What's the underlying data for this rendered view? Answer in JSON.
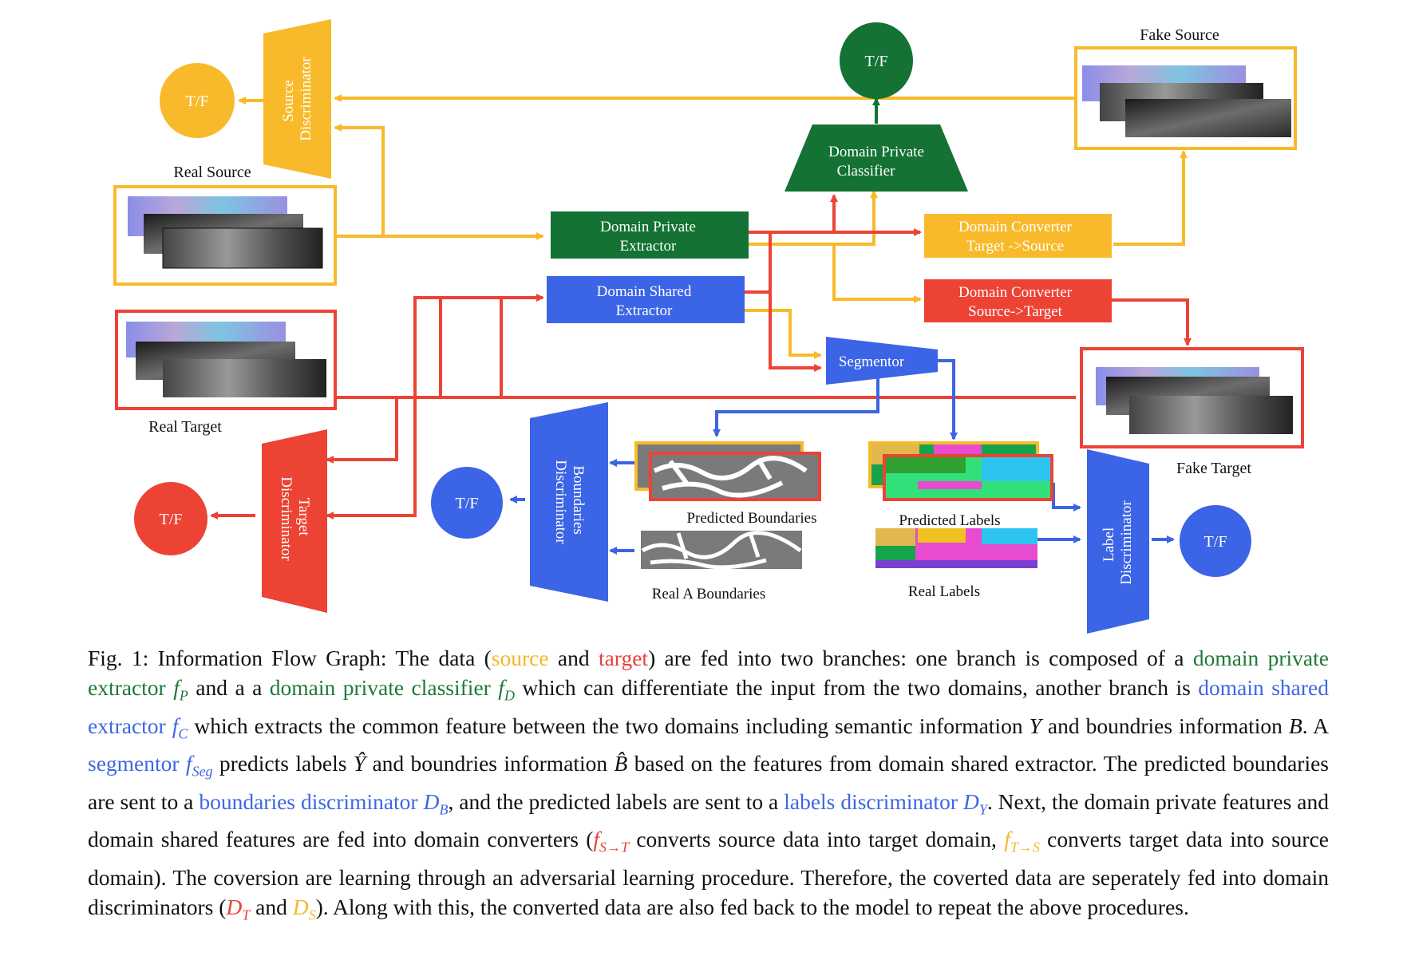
{
  "colors": {
    "yellow": "#f8ba2a",
    "red": "#ec4335",
    "green": "#137234",
    "blue": "#3b64e6"
  },
  "diagram": {
    "tf_source": "T/F",
    "source_discriminator": [
      "Source",
      "Discriminator"
    ],
    "real_source": "Real Source",
    "real_target": "Real Target",
    "tf_target": "T/F",
    "target_discriminator": [
      "Target",
      "Discriminator"
    ],
    "tf_private": "T/F",
    "domain_private_classifier": [
      "Domain Private",
      "Classifier"
    ],
    "fake_source": "Fake Source",
    "domain_private_extractor": [
      "Domain Private",
      "Extractor"
    ],
    "domain_shared_extractor": [
      "Domain Shared",
      "Extractor"
    ],
    "converter_ts": [
      "Domain Converter",
      "Target ->Source"
    ],
    "converter_st": [
      "Domain Converter",
      "Source->Target"
    ],
    "segmentor": "Segmentor",
    "fake_target": "Fake Target",
    "tf_boundaries": "T/F",
    "boundaries_discriminator": [
      "Boundaries",
      "Discriminator"
    ],
    "predicted_boundaries": "Predicted Boundaries",
    "real_a_boundaries": "Real A Boundaries",
    "predicted_labels": "Predicted Labels",
    "real_labels": "Real Labels",
    "label_discriminator": [
      "Label",
      "Discriminator"
    ],
    "tf_label": "T/F"
  },
  "caption": {
    "s01": "Fig. 1: Information Flow Graph: The data (",
    "source": "source",
    "s02": " and ",
    "target": "target",
    "s03": ") are fed into two branches: one branch is composed of a ",
    "dpe": "domain private extractor",
    "fP": "f",
    "fP_sub": "P",
    "s04": " and a a ",
    "dpc": "domain private classifier",
    "fD": "f",
    "fD_sub": "D",
    "s05": " which can differentiate the input from the two domains, another branch is ",
    "dse": "domain shared extractor",
    "fC": "f",
    "fC_sub": "C",
    "s06": " which extracts the common feature between the two domains including semantic information ",
    "Y": "Y",
    "s07": " and boundries information ",
    "B": "B",
    "s08": ". A ",
    "seg": "segmentor",
    "fSeg": "f",
    "fSeg_sub": "Seg",
    "s09": " predicts labels ",
    "Yhat": "Ŷ",
    "s10": " and boundries information ",
    "Bhat": "B̂",
    "s11": " based on the features from domain shared extractor. The predicted boundaries are sent to a ",
    "bd": "boundaries discriminator",
    "DB": "D",
    "DB_sub": "B",
    "s12": ", and the predicted labels are sent to a ",
    "ld": "labels discriminator",
    "DY": "D",
    "DY_sub": "Y",
    "s13": ". Next, the domain private features and domain shared features are fed into domain converters (",
    "fST": "f",
    "fST_sub": "S→T",
    "s14": " converts source data into target domain, ",
    "fTS": "f",
    "fTS_sub": "T→S",
    "s15": " converts target data into source domain). The coversion are learning through an adversarial learning procedure. Therefore, the coverted data are seperately fed into domain discriminators (",
    "DT": "D",
    "DT_sub": "T",
    "s16": " and ",
    "DS": "D",
    "DS_sub": "S",
    "s17": "). Along with this, the converted data are also fed back to the model to repeat the above procedures."
  }
}
